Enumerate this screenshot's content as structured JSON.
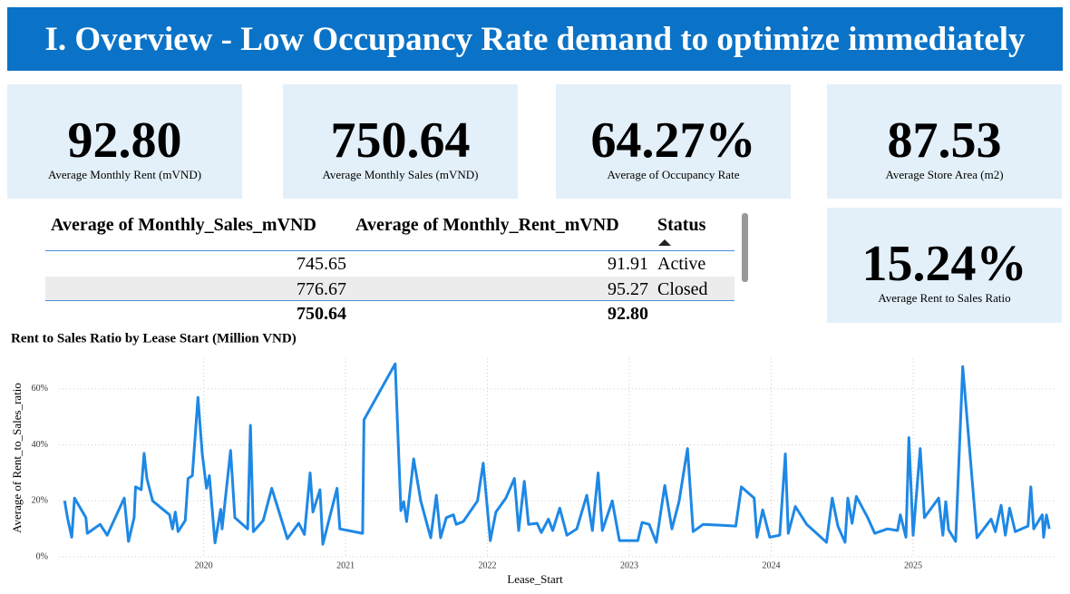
{
  "header": {
    "title": "I. Overview - Low Occupancy Rate demand to optimize immediately"
  },
  "cards": [
    {
      "value": "92.80",
      "label": "Average Monthly Rent (mVND)"
    },
    {
      "value": "750.64",
      "label": "Average Monthly Sales (mVND)"
    },
    {
      "value": "64.27%",
      "label": "Average of Occupancy Rate"
    },
    {
      "value": "87.53",
      "label": "Average Store Area (m2)"
    },
    {
      "value": "15.24%",
      "label": "Average Rent to Sales Ratio"
    }
  ],
  "table": {
    "columns": [
      "Average of Monthly_Sales_mVND",
      "Average of Monthly_Rent_mVND",
      "Status"
    ],
    "rows": [
      [
        "745.65",
        "91.91",
        "Active"
      ],
      [
        "776.67",
        "95.27",
        "Closed"
      ]
    ],
    "total": [
      "750.64",
      "92.80"
    ]
  },
  "chart_data": {
    "type": "line",
    "title": "Rent to Sales Ratio by Lease Start (Million VND)",
    "x_label": "Lease_Start",
    "y_label": "Average of Rent_to_Sales_ratio",
    "color": "#1e88e5",
    "grid": true,
    "xlim": [
      2018.98,
      2026.01
    ],
    "xticks": [
      2020,
      2021,
      2022,
      2023,
      2024,
      2025
    ],
    "ylim": [
      0,
      71
    ],
    "yticks": [
      {
        "value": 0,
        "label": "0%"
      },
      {
        "value": 20,
        "label": "20%"
      },
      {
        "value": 40,
        "label": "40%"
      },
      {
        "value": 60,
        "label": "60%"
      }
    ],
    "x": [
      2019.02,
      2019.04,
      2019.07,
      2019.09,
      2019.17,
      2019.18,
      2019.27,
      2019.32,
      2019.44,
      2019.47,
      2019.51,
      2019.52,
      2019.56,
      2019.58,
      2019.6,
      2019.64,
      2019.76,
      2019.78,
      2019.8,
      2019.82,
      2019.87,
      2019.89,
      2019.92,
      2019.96,
      2019.99,
      2020.02,
      2020.04,
      2020.08,
      2020.12,
      2020.13,
      2020.19,
      2020.22,
      2020.31,
      2020.33,
      2020.35,
      2020.42,
      2020.48,
      2020.59,
      2020.67,
      2020.71,
      2020.75,
      2020.77,
      2020.82,
      2020.84,
      2020.94,
      2020.96,
      2021.12,
      2021.13,
      2021.35,
      2021.39,
      2021.41,
      2021.43,
      2021.48,
      2021.53,
      2021.6,
      2021.64,
      2021.67,
      2021.71,
      2021.76,
      2021.78,
      2021.83,
      2021.93,
      2021.97,
      2022.02,
      2022.06,
      2022.13,
      2022.19,
      2022.22,
      2022.26,
      2022.29,
      2022.35,
      2022.38,
      2022.43,
      2022.46,
      2022.51,
      2022.56,
      2022.63,
      2022.7,
      2022.74,
      2022.78,
      2022.81,
      2022.88,
      2022.93,
      2023.06,
      2023.09,
      2023.14,
      2023.19,
      2023.25,
      2023.3,
      2023.35,
      2023.41,
      2023.45,
      2023.52,
      2023.64,
      2023.75,
      2023.79,
      2023.88,
      2023.9,
      2023.94,
      2023.99,
      2024.06,
      2024.1,
      2024.12,
      2024.17,
      2024.25,
      2024.39,
      2024.43,
      2024.47,
      2024.52,
      2024.54,
      2024.57,
      2024.6,
      2024.68,
      2024.73,
      2024.82,
      2024.89,
      2024.91,
      2024.95,
      2024.97,
      2025.0,
      2025.05,
      2025.08,
      2025.18,
      2025.21,
      2025.23,
      2025.25,
      2025.3,
      2025.35,
      2025.45,
      2025.55,
      2025.58,
      2025.62,
      2025.65,
      2025.68,
      2025.72,
      2025.81,
      2025.83,
      2025.85,
      2025.91,
      2025.92,
      2025.94,
      2025.96
    ],
    "values": [
      20,
      14,
      7,
      21,
      14,
      8.4,
      11.6,
      7.7,
      21,
      5.5,
      14,
      25,
      24,
      37,
      28,
      20,
      15,
      10,
      16,
      9,
      13,
      28,
      29,
      57,
      37,
      24.5,
      29,
      5,
      17,
      10,
      38,
      14,
      10,
      47,
      9,
      13,
      24.5,
      6.5,
      12,
      8,
      30,
      16,
      24,
      4.5,
      24.5,
      10,
      8.4,
      49,
      69,
      16.5,
      19.7,
      12.6,
      35,
      20,
      6.8,
      22,
      6.8,
      14,
      15,
      11.6,
      12.6,
      20,
      33.5,
      5.8,
      16,
      21,
      28,
      9.4,
      27,
      11.6,
      12,
      8.7,
      13.5,
      9.4,
      17.4,
      7.7,
      10,
      22,
      9.4,
      30,
      9.4,
      20,
      5.8,
      5.8,
      12.3,
      11.6,
      5.2,
      25.5,
      10,
      19.7,
      38.7,
      9,
      11.6,
      11.3,
      11,
      25,
      21,
      7,
      16.8,
      7,
      7.7,
      36.8,
      8.4,
      18,
      11.6,
      5.2,
      21,
      11,
      5.2,
      21,
      12,
      21.6,
      14,
      8.4,
      10,
      9.4,
      15,
      7,
      42.6,
      7.7,
      38.7,
      14,
      21,
      7.7,
      19.7,
      9.7,
      5.5,
      68,
      6.8,
      13.5,
      9,
      18.4,
      7.7,
      17.4,
      9,
      11,
      25,
      10,
      15,
      7,
      15,
      10
    ]
  }
}
